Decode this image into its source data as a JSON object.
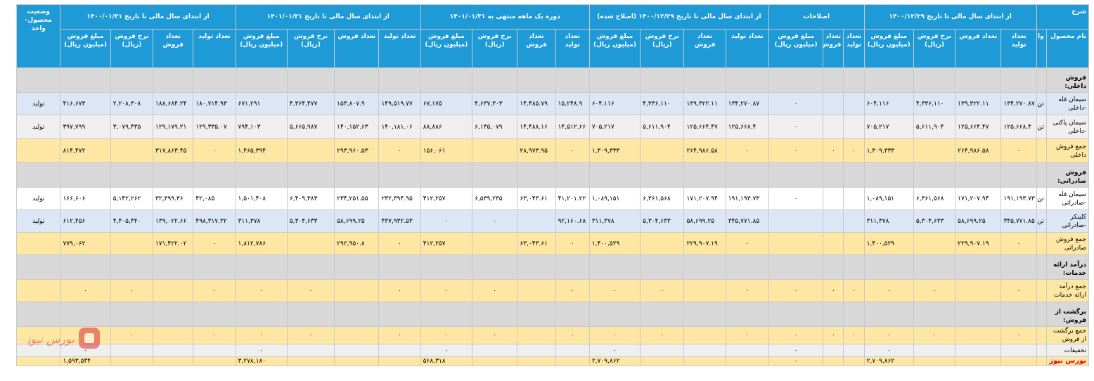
{
  "header": {
    "desc": "شرح",
    "groups": [
      "از ابتدای سال مالی تا تاریخ ۱۴۰۰/۱۲/۲۹",
      "اصلاحات",
      "از ابتدای سال مالی تا تاریخ ۱۴۰۰/۱۲/۲۹ (اصلاح شده)",
      "دوره یک ماهه منتهی به ۱۴۰۱/۰۱/۳۱",
      "از ابتدای سال مالی تا تاریخ ۱۴۰۱/۰۱/۳۱",
      "از ابتدای سال مالی تا تاریخ ۱۴۰۰/۰۱/۳۱",
      "وضعیت محصول-واحد"
    ],
    "product_name": "نام محصول",
    "unit": "واحد",
    "cols": {
      "prod": "تعداد تولید",
      "sales": "تعداد فروش",
      "rate": "نرخ فروش (ریال)",
      "amount": "مبلغ فروش (میلیون ریال)",
      "amount_b": "مبلغ فروش (میلیون ریال)",
      "amount_c": "مبلغ فروش (میلیون ریال)",
      "amount_adj": "مبلغ فروش (میلیون ریال)"
    }
  },
  "rows": [
    {
      "type": "section",
      "name": "فروش داخلی:"
    },
    {
      "type": "blue",
      "name": "سیمان فله -داخلی",
      "unit": "تن",
      "v": [
        "۱۳۴,۲۷۰.۸۷",
        "۱۳۹,۳۲۲.۱۱",
        "۴,۳۳۶,۱۱۰",
        "۶۰۴,۱۱۶",
        "",
        "",
        "۰",
        "۱۳۴,۲۷۰.۸۷",
        "۱۳۹,۳۲۲.۱۱",
        "۴,۳۳۶,۱۱۰",
        "۶۰۴,۱۱۶",
        "۱۵,۲۴۸.۹",
        "۱۴,۴۸۵.۷۹",
        "۴,۶۳۷,۳۰۳",
        "۶۷,۱۷۵",
        "۱۴۹,۵۱۹.۷۷",
        "۱۵۳,۸۰۷.۹",
        "۴,۳۶۴,۴۷۷",
        "۶۷۱,۲۹۱",
        "۱۸۰,۷۱۴.۹۳",
        "۱۸۸,۶۸۴.۲۴",
        "۲,۲۰۸,۳۰۸",
        "۴۱۶,۶۷۳"
      ],
      "status": "تولید"
    },
    {
      "type": "gray",
      "name": "سیمان پاکتی -داخلی",
      "unit": "تن",
      "v": [
        "۱۲۵,۶۶۸.۴",
        "۱۲۵,۶۶۴.۴۷",
        "۵,۶۱۱,۹۰۴",
        "۷۰۵,۲۱۷",
        "",
        "",
        "۰",
        "۱۲۵,۶۶۸.۴",
        "۱۲۵,۶۶۴.۴۷",
        "۵,۶۱۱,۹۰۴",
        "۷۰۵,۲۱۷",
        "۱۴,۵۱۲.۶۶",
        "۱۴,۴۸۸.۱۶",
        "۶,۱۳۵,۰۷۹",
        "۸۸,۸۸۶",
        "۱۴۰,۱۸۱.۰۶",
        "۱۴۰,۱۵۲.۶۳",
        "۵,۶۶۵,۹۸۷",
        "۷۹۴,۱۰۳",
        "۱۲۹,۳۳۵.۰۷",
        "۱۲۹,۱۷۹.۲۱",
        "۳,۰۷۹,۴۳۵",
        "۳۹۷,۷۹۹"
      ],
      "status": "تولید"
    },
    {
      "type": "total",
      "name": "جمع فروش داخلی",
      "unit": "",
      "v": [
        "۰",
        "۲۶۴,۹۸۶.۵۸",
        "",
        "۱,۳۰۹,۳۳۳",
        "۰",
        "۰",
        "۰",
        "۰",
        "۲۶۴,۹۸۶.۵۸",
        "",
        "۱,۳۰۹,۳۳۳",
        "۰",
        "۲۸,۹۷۳.۹۵",
        "",
        "۱۵۶,۰۶۱",
        "۰",
        "۲۹۳,۹۶۰.۵۳",
        "",
        "۱,۴۶۵,۳۹۴",
        "۰",
        "۳۱۷,۸۶۳.۴۵",
        "",
        "۸۱۴,۴۷۲"
      ],
      "status": ""
    },
    {
      "type": "section",
      "name": "فروش صادراتی:"
    },
    {
      "type": "white",
      "name": "سیمان فله -صادراتی",
      "unit": "تن",
      "v": [
        "۱۹۱,۱۹۳.۷۳",
        "۱۷۱,۲۰۷.۹۴",
        "۶,۳۶۱,۵۶۸",
        "۱,۰۸۹,۱۵۱",
        "",
        "",
        "۰",
        "۱۹۱,۱۹۳.۷۳",
        "۱۷۱,۲۰۷.۹۴",
        "۶,۳۶۱,۵۶۸",
        "۱,۰۸۹,۱۵۱",
        "۴۱,۲۰۱.۲۲",
        "۶۳,۰۴۳.۶۱",
        "۶,۵۳۹,۲۳۵",
        "۴۱۲,۲۵۷",
        "۲۳۲,۳۹۴.۹۵",
        "۲۳۴,۲۵۱.۵۵",
        "۶,۴۰۹,۳۸۳",
        "۱,۵۰۱,۴۰۸",
        "۴۲,۰۸۵",
        "۳۲,۳۹۹.۳۶",
        "۵,۱۴۲,۲۶۲",
        "۱۶۶,۶۰۶"
      ],
      "status": "تولید"
    },
    {
      "type": "blue",
      "name": "کلینکر -صادراتی",
      "unit": "تن",
      "v": [
        "۳۴۵,۷۷۱.۸۵",
        "۵۸,۶۹۹.۲۵",
        "۵,۳۰۴,۶۳۳",
        "۳۱۱,۳۷۸",
        "",
        "",
        "",
        "۳۴۵,۷۷۱.۸۵",
        "۵۸,۶۹۹.۲۵",
        "۵,۳۰۴,۶۳۳",
        "۳۱۱,۳۷۸",
        "۹۲,۱۶۰.۶۸",
        "",
        "۰",
        "۰",
        "۴۳۷,۹۳۲.۵۳",
        "۵۸,۶۹۹.۲۵",
        "۵,۳۰۴,۶۳۳",
        "۳۱۱,۳۷۸",
        "۴۹۸,۳۱۷.۳۲",
        "۱۳۹,۰۲۲.۶۶",
        "۴,۴۰۵,۴۴۰",
        "۶۱۲,۴۵۶"
      ],
      "status": "تولید"
    },
    {
      "type": "total",
      "name": "جمع فروش صادراتی",
      "unit": "",
      "v": [
        "۰",
        "۲۲۹,۹۰۷.۱۹",
        "",
        "۱,۴۰۰,۵۲۹",
        "",
        "",
        "",
        "۰",
        "۲۲۹,۹۰۷.۱۹",
        "",
        "۱,۴۰۰,۵۲۹",
        "۰",
        "۶۳,۰۴۳.۶۱",
        "",
        "۴۱۲,۲۵۷",
        "۰",
        "۲۹۲,۹۵۰.۸",
        "",
        "۱,۸۱۲,۷۸۶",
        "۰",
        "۱۷۱,۴۲۲.۰۲",
        "",
        "۷۷۹,۰۶۲"
      ],
      "status": ""
    },
    {
      "type": "section",
      "name": "درآمد ارائه خدمات:"
    },
    {
      "type": "total",
      "name": "جمع درآمد ارائه خدمات",
      "unit": "",
      "v": [
        "۰",
        "",
        "۰",
        "۰",
        "۰",
        "۰",
        "۰",
        "۰",
        "",
        "۰",
        "۰",
        "۰",
        "",
        "۰",
        "۰",
        "۰",
        "",
        "۰",
        "۰",
        "۰",
        "",
        "۰",
        "۰"
      ],
      "status": ""
    },
    {
      "type": "section",
      "name": "برگشت از فروش:"
    },
    {
      "type": "total",
      "name": "جمع برگشت از فروش",
      "unit": "",
      "v": [
        "۰",
        "",
        "۰",
        "۰",
        "۰",
        "۰",
        "۰",
        "۰",
        "",
        "۰",
        "۰",
        "۰",
        "",
        "۰",
        "۰",
        "۰",
        "",
        "۰",
        "۰",
        "۰",
        "",
        "۰",
        "۰"
      ],
      "status": ""
    },
    {
      "type": "gray",
      "name": "تخفیفات",
      "unit": "",
      "v": [
        "",
        "",
        "",
        "۰",
        "",
        "",
        "۰",
        "",
        "",
        "",
        "۰",
        "",
        "",
        "",
        "۰",
        "",
        "",
        "",
        "۰",
        "",
        "",
        "",
        "۰"
      ],
      "status": ""
    },
    {
      "type": "total",
      "name": "بورس نیوز",
      "unit": "",
      "v": [
        "",
        "",
        "",
        "۲,۷۰۹,۸۶۲",
        "",
        "",
        "۰",
        "",
        "",
        "",
        "۲,۷۰۹,۸۶۲",
        "",
        "",
        "",
        "۵۶۸,۳۱۸",
        "",
        "",
        "",
        "۳,۲۷۸,۱۸۰",
        "",
        "",
        "",
        "۱,۵۹۳,۵۳۴"
      ],
      "status": ""
    }
  ],
  "watermark": {
    "text": "بورس نیوز",
    "color": "#d6081f"
  }
}
